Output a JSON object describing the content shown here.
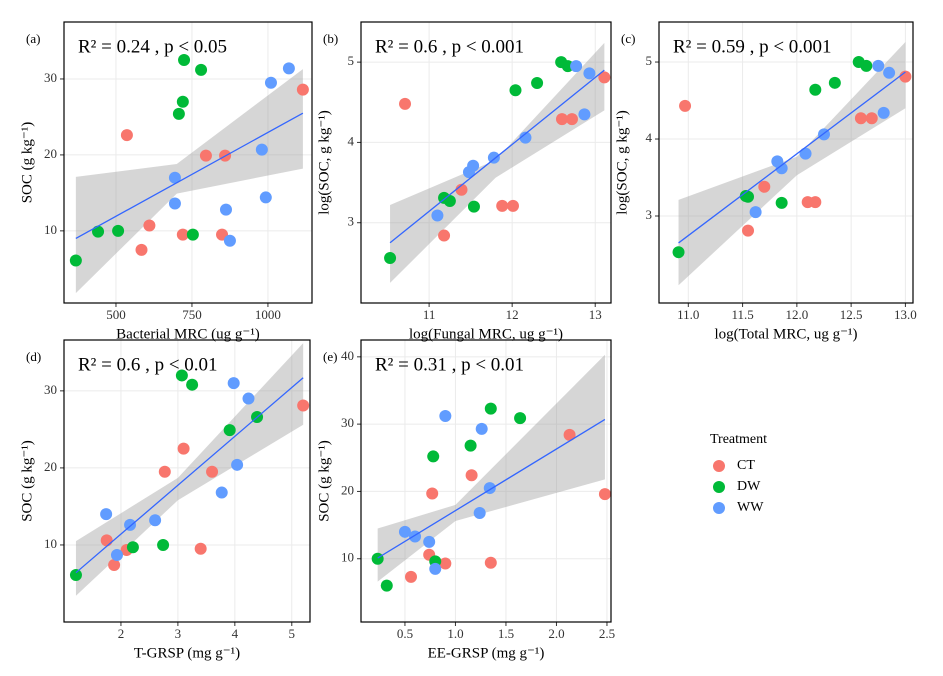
{
  "chart_data": [
    {
      "type": "scatter",
      "panel_label": "(a)",
      "annotation": "R² = 0.24 , p < 0.05",
      "x_label": "Bacterial MRC (ug g⁻¹)",
      "y_label": "SOC (g kg⁻¹)",
      "xlim": [
        329,
        1145
      ],
      "ylim": [
        0.5,
        37.5
      ],
      "xticks": [
        500,
        750,
        1000
      ],
      "yticks": [
        10,
        20,
        30
      ],
      "grid": true,
      "series": [
        {
          "name": "CT",
          "color": "#F8766D",
          "x": [
            536,
            610,
            584,
            720,
            796,
            859,
            849,
            1115
          ],
          "values": [
            22.6,
            10.7,
            7.5,
            9.5,
            19.9,
            19.9,
            9.5,
            28.6
          ]
        },
        {
          "name": "DW",
          "color": "#00BA38",
          "x": [
            368,
            441,
            507,
            724,
            780,
            720,
            707,
            753
          ],
          "values": [
            6.1,
            9.9,
            10,
            32.5,
            31.2,
            27,
            25.4,
            9.5
          ]
        },
        {
          "name": "WW",
          "color": "#619CFF",
          "x": [
            694,
            694,
            862,
            875,
            980,
            993,
            1010,
            1069
          ],
          "values": [
            17,
            13.6,
            12.8,
            8.7,
            20.7,
            14.4,
            29.5,
            31.4
          ]
        }
      ],
      "fit": {
        "color": "#3366FF",
        "x": [
          368,
          1115
        ],
        "values": [
          9,
          25.5
        ]
      },
      "band": {
        "x": [
          368,
          700,
          1115
        ],
        "lower": [
          1.8,
          14.9,
          18.2
        ],
        "upper": [
          17.1,
          18.8,
          31.3
        ]
      }
    },
    {
      "type": "scatter",
      "panel_label": "(b)",
      "annotation": "R² = 0.6 , p < 0.001",
      "x_label": "log(Fungal MRC, ug g⁻¹)",
      "y_label": "log(SOC, g kg⁻¹)",
      "xlim": [
        10.18,
        13.19
      ],
      "ylim": [
        2.0,
        5.5
      ],
      "xticks": [
        11,
        12,
        13
      ],
      "yticks": [
        3,
        4,
        5
      ],
      "grid": true,
      "series": [
        {
          "name": "CT",
          "color": "#F8766D",
          "x": [
            10.71,
            11.18,
            11.39,
            11.88,
            12.01,
            12.6,
            12.72,
            13.11
          ],
          "values": [
            4.48,
            2.84,
            3.41,
            3.21,
            3.21,
            4.29,
            4.29,
            4.81
          ]
        },
        {
          "name": "DW",
          "color": "#00BA38",
          "x": [
            10.53,
            11.18,
            11.25,
            11.54,
            12.04,
            12.3,
            12.59,
            12.67
          ],
          "values": [
            2.56,
            3.31,
            3.27,
            3.2,
            4.65,
            4.74,
            5.0,
            4.95
          ]
        },
        {
          "name": "WW",
          "color": "#619CFF",
          "x": [
            11.1,
            11.48,
            11.53,
            11.78,
            12.16,
            12.77,
            12.87,
            12.93
          ],
          "values": [
            3.09,
            3.63,
            3.71,
            3.81,
            4.06,
            4.95,
            4.35,
            4.86
          ]
        }
      ],
      "fit": {
        "color": "#3366FF",
        "x": [
          10.53,
          13.11
        ],
        "values": [
          2.75,
          4.9
        ]
      },
      "band": {
        "x": [
          10.53,
          11.8,
          13.11
        ],
        "lower": [
          2.25,
          3.56,
          4.4
        ],
        "upper": [
          3.22,
          3.78,
          5.24
        ]
      }
    },
    {
      "type": "scatter",
      "panel_label": "(c)",
      "annotation": "R² = 0.59 , p < 0.001",
      "x_label": "log(Total MRC, ug g⁻¹)",
      "y_label": "log(SOC, g kg⁻¹)",
      "xlim": [
        10.73,
        13.07
      ],
      "ylim": [
        1.87,
        5.52
      ],
      "xticks": [
        {
          "value": 11,
          "label": "11.0"
        },
        11.5,
        {
          "value": 12,
          "label": "12.0"
        },
        12.5,
        {
          "value": 13,
          "label": "13.0"
        }
      ],
      "yticks": [
        3,
        4,
        5
      ],
      "grid": true,
      "series": [
        {
          "name": "CT",
          "color": "#F8766D",
          "x": [
            10.97,
            11.55,
            11.7,
            12.1,
            12.17,
            12.59,
            12.69,
            13.0
          ],
          "values": [
            4.43,
            2.81,
            3.38,
            3.18,
            3.18,
            4.27,
            4.27,
            4.81
          ]
        },
        {
          "name": "DW",
          "color": "#00BA38",
          "x": [
            10.91,
            11.53,
            11.55,
            11.86,
            12.17,
            12.35,
            12.57,
            12.64
          ],
          "values": [
            2.53,
            3.26,
            3.25,
            3.17,
            4.64,
            4.73,
            5.0,
            4.95
          ]
        },
        {
          "name": "WW",
          "color": "#619CFF",
          "x": [
            11.62,
            11.82,
            11.86,
            12.08,
            12.25,
            12.75,
            12.8,
            12.85
          ],
          "values": [
            3.05,
            3.71,
            3.62,
            3.81,
            4.06,
            4.95,
            4.34,
            4.86
          ]
        }
      ],
      "fit": {
        "color": "#3366FF",
        "x": [
          10.91,
          13.0
        ],
        "values": [
          2.65,
          4.87
        ]
      },
      "band": {
        "x": [
          10.91,
          12.0,
          13.0
        ],
        "lower": [
          2.1,
          3.53,
          4.4
        ],
        "upper": [
          3.21,
          3.77,
          5.26
        ]
      }
    },
    {
      "type": "scatter",
      "panel_label": "(d)",
      "annotation": "R² = 0.6 , p < 0.01",
      "x_label": "T-GRSP  (mg g⁻¹)",
      "y_label": "SOC (g kg⁻¹)",
      "xlim": [
        1.0,
        5.32
      ],
      "ylim": [
        0,
        36.6
      ],
      "xticks": [
        2,
        3,
        4,
        5
      ],
      "yticks": [
        10,
        20,
        30
      ],
      "grid": true,
      "series": [
        {
          "name": "CT",
          "color": "#F8766D",
          "x": [
            1.75,
            2.1,
            1.88,
            2.77,
            3.1,
            3.4,
            3.6,
            5.2
          ],
          "values": [
            10.6,
            9.35,
            7.4,
            19.5,
            22.5,
            9.5,
            19.5,
            28.1
          ]
        },
        {
          "name": "DW",
          "color": "#00BA38",
          "x": [
            1.21,
            2.21,
            2.74,
            3.07,
            3.25,
            3.91,
            4.39
          ],
          "values": [
            6.1,
            9.7,
            10,
            32,
            30.8,
            24.9,
            26.6
          ]
        },
        {
          "name": "WW",
          "color": "#619CFF",
          "x": [
            1.74,
            1.93,
            2.16,
            2.6,
            3.77,
            4.04,
            3.98,
            4.24
          ],
          "values": [
            14.0,
            8.7,
            12.6,
            13.2,
            16.8,
            20.4,
            31,
            29
          ]
        }
      ],
      "fit": {
        "color": "#3366FF",
        "x": [
          1.21,
          5.2
        ],
        "values": [
          6.4,
          31.7
        ]
      },
      "band": {
        "x": [
          1.21,
          3.0,
          5.2
        ],
        "lower": [
          3.4,
          15.8,
          25.6
        ],
        "upper": [
          10.5,
          18.7,
          36.2
        ]
      }
    },
    {
      "type": "scatter",
      "panel_label": "(e)",
      "annotation": "R² = 0.31 , p < 0.01",
      "x_label": "EE-GRSP  (mg g⁻¹)",
      "y_label": "SOC (g kg⁻¹)",
      "xlim": [
        0.065,
        2.54
      ],
      "ylim": [
        0.6,
        42.5
      ],
      "xticks": [
        0.5,
        {
          "value": 1,
          "label": "1.0"
        },
        1.5,
        {
          "value": 2,
          "label": "2.0"
        },
        2.5
      ],
      "yticks": [
        10,
        20,
        30,
        40
      ],
      "grid": true,
      "series": [
        {
          "name": "CT",
          "color": "#F8766D",
          "x": [
            0.77,
            0.74,
            0.56,
            0.9,
            1.16,
            1.35,
            2.13,
            2.48
          ],
          "values": [
            19.7,
            10.6,
            7.3,
            9.3,
            22.4,
            9.4,
            28.4,
            19.6
          ]
        },
        {
          "name": "DW",
          "color": "#00BA38",
          "x": [
            0.23,
            0.32,
            0.78,
            0.8,
            1.15,
            1.35,
            1.64
          ],
          "values": [
            10,
            6.0,
            25.2,
            9.6,
            26.8,
            32.3,
            30.9
          ]
        },
        {
          "name": "WW",
          "color": "#619CFF",
          "x": [
            0.5,
            0.6,
            0.74,
            0.8,
            0.9,
            1.26,
            1.24,
            1.34
          ],
          "values": [
            14.0,
            13.3,
            12.5,
            8.5,
            31.2,
            29.3,
            16.8,
            20.5
          ]
        }
      ],
      "fit": {
        "color": "#3366FF",
        "x": [
          0.23,
          2.48
        ],
        "values": [
          10.1,
          30.7
        ]
      },
      "band": {
        "x": [
          0.23,
          1.0,
          2.48
        ],
        "lower": [
          6.6,
          15.6,
          21.8
        ],
        "upper": [
          14.5,
          18.0,
          40.3
        ]
      }
    }
  ],
  "legend": {
    "title": "Treatment"
  }
}
